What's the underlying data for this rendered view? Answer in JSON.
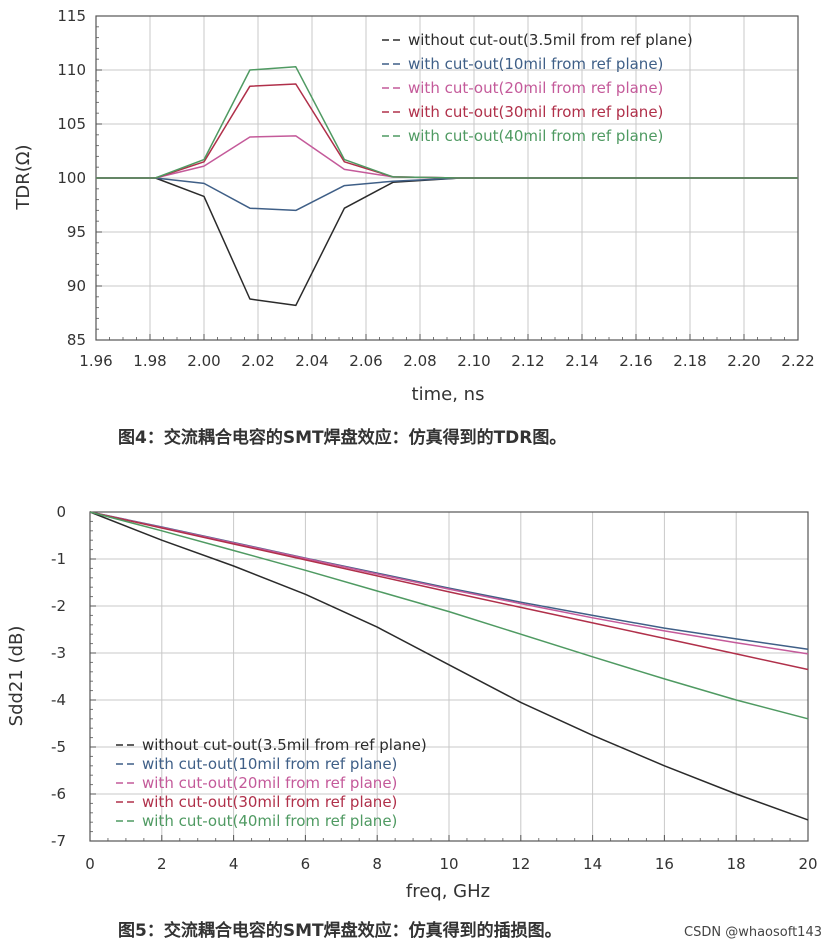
{
  "chart_data": [
    {
      "type": "line",
      "xlabel": "time, ns",
      "ylabel": "TDR(Ω)",
      "xlim": [
        1.96,
        2.22
      ],
      "ylim": [
        85,
        115
      ],
      "x_ticks": [
        "1.96",
        "1.98",
        "2.00",
        "2.02",
        "2.04",
        "2.06",
        "2.08",
        "2.10",
        "2.12",
        "2.14",
        "2.16",
        "2.18",
        "2.20",
        "2.22"
      ],
      "y_ticks": [
        "85",
        "90",
        "95",
        "100",
        "105",
        "110",
        "115"
      ],
      "grid": true,
      "legend_position": "top-right",
      "caption": "图4：交流耦合电容的SMT焊盘效应：仿真得到的TDR图。",
      "series": [
        {
          "name": "without cut-out(3.5mil from ref plane)",
          "color": "#2b2b2b",
          "x": [
            1.96,
            1.982,
            2.0,
            2.017,
            2.034,
            2.052,
            2.07,
            2.095,
            2.22
          ],
          "y": [
            100,
            100,
            98.3,
            88.8,
            88.2,
            97.2,
            99.6,
            100,
            100
          ]
        },
        {
          "name": "with cut-out(10mil from ref plane)",
          "color": "#3f5f87",
          "x": [
            1.96,
            1.982,
            2.0,
            2.017,
            2.034,
            2.052,
            2.07,
            2.095,
            2.22
          ],
          "y": [
            100,
            100,
            99.5,
            97.2,
            97.0,
            99.3,
            99.7,
            100,
            100
          ]
        },
        {
          "name": "with cut-out(20mil from ref plane)",
          "color": "#c45a9a",
          "x": [
            1.96,
            1.982,
            2.0,
            2.017,
            2.034,
            2.052,
            2.07,
            2.095,
            2.22
          ],
          "y": [
            100,
            100,
            101.1,
            103.8,
            103.9,
            100.8,
            100.1,
            100,
            100
          ]
        },
        {
          "name": "with cut-out(30mil from ref plane)",
          "color": "#b0304a",
          "x": [
            1.96,
            1.982,
            2.0,
            2.017,
            2.034,
            2.052,
            2.07,
            2.095,
            2.22
          ],
          "y": [
            100,
            100,
            101.5,
            108.5,
            108.7,
            101.5,
            100.1,
            100,
            100
          ]
        },
        {
          "name": "with cut-out(40mil from ref plane)",
          "color": "#4f9a62",
          "x": [
            1.96,
            1.982,
            2.0,
            2.017,
            2.034,
            2.052,
            2.07,
            2.095,
            2.22
          ],
          "y": [
            100,
            100,
            101.7,
            110.0,
            110.3,
            101.7,
            100.1,
            100,
            100
          ]
        }
      ]
    },
    {
      "type": "line",
      "xlabel": "freq, GHz",
      "ylabel": "Sdd21 (dB)",
      "xlim": [
        0,
        20
      ],
      "ylim": [
        -7,
        0
      ],
      "x_ticks": [
        "0",
        "2",
        "4",
        "6",
        "8",
        "10",
        "12",
        "14",
        "16",
        "18",
        "20"
      ],
      "y_ticks": [
        "0",
        "-1",
        "-2",
        "-3",
        "-4",
        "-5",
        "-6",
        "-7"
      ],
      "grid": true,
      "legend_position": "bottom-left",
      "caption": "图5：交流耦合电容的SMT焊盘效应：仿真得到的插损图。",
      "series": [
        {
          "name": "without cut-out(3.5mil from ref plane)",
          "color": "#2b2b2b",
          "x": [
            0,
            2,
            4,
            6,
            8,
            10,
            12,
            14,
            16,
            18,
            20
          ],
          "y": [
            0,
            -0.6,
            -1.15,
            -1.75,
            -2.45,
            -3.25,
            -4.05,
            -4.75,
            -5.4,
            -6.0,
            -6.55
          ]
        },
        {
          "name": "with cut-out(10mil from ref plane)",
          "color": "#3f5f87",
          "x": [
            0,
            2,
            4,
            6,
            8,
            10,
            12,
            14,
            16,
            18,
            20
          ],
          "y": [
            0,
            -0.32,
            -0.65,
            -0.98,
            -1.3,
            -1.62,
            -1.92,
            -2.2,
            -2.47,
            -2.7,
            -2.92
          ]
        },
        {
          "name": "with cut-out(20mil from ref plane)",
          "color": "#c45a9a",
          "x": [
            0,
            2,
            4,
            6,
            8,
            10,
            12,
            14,
            16,
            18,
            20
          ],
          "y": [
            0,
            -0.33,
            -0.66,
            -0.99,
            -1.32,
            -1.64,
            -1.95,
            -2.25,
            -2.53,
            -2.78,
            -3.02
          ]
        },
        {
          "name": "with cut-out(30mil from ref plane)",
          "color": "#b0304a",
          "x": [
            0,
            2,
            4,
            6,
            8,
            10,
            12,
            14,
            16,
            18,
            20
          ],
          "y": [
            0,
            -0.34,
            -0.68,
            -1.02,
            -1.36,
            -1.7,
            -2.03,
            -2.36,
            -2.69,
            -3.02,
            -3.35
          ]
        },
        {
          "name": "with cut-out(40mil from ref plane)",
          "color": "#4f9a62",
          "x": [
            0,
            2,
            4,
            6,
            8,
            10,
            12,
            14,
            16,
            18,
            20
          ],
          "y": [
            0,
            -0.4,
            -0.82,
            -1.24,
            -1.68,
            -2.12,
            -2.6,
            -3.08,
            -3.55,
            -4.0,
            -4.4
          ]
        }
      ]
    }
  ],
  "watermark": "CSDN @whaosoft143"
}
